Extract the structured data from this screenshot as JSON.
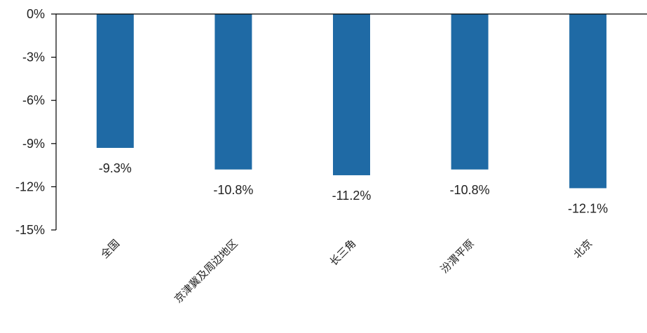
{
  "chart_data": {
    "type": "bar",
    "title": "",
    "xlabel": "",
    "ylabel": "",
    "categories": [
      "全国",
      "京津冀及周边地区",
      "长三角",
      "汾渭平原",
      "北京"
    ],
    "values": [
      -9.3,
      -10.8,
      -11.2,
      -10.8,
      -12.1
    ],
    "data_labels": [
      "-9.3%",
      "-10.8%",
      "-11.2%",
      "-10.8%",
      "-12.1%"
    ],
    "yticks": [
      0,
      -3,
      -6,
      -9,
      -12,
      -15
    ],
    "ytick_labels": [
      "0%",
      "-3%",
      "-6%",
      "-9%",
      "-12%",
      "-15%"
    ],
    "ylim": [
      -15,
      0
    ],
    "grid": false,
    "legend": "none",
    "bar_color": "#1f6aa5"
  }
}
